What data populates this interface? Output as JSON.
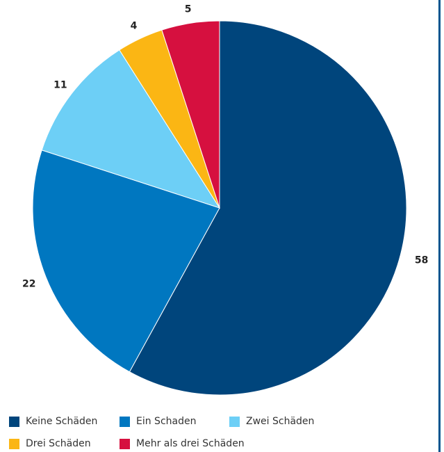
{
  "chart_data": {
    "type": "pie",
    "title": "",
    "start": "top",
    "direction": "clockwise",
    "slices": [
      {
        "label": "Keine Schäden",
        "value": 58,
        "value_label": "58",
        "color": "#00457c"
      },
      {
        "label": "Ein Schaden",
        "value": 22,
        "value_label": "22",
        "color": "#0077c0"
      },
      {
        "label": "Zwei Schäden",
        "value": 11,
        "value_label": "11",
        "color": "#6dcff6"
      },
      {
        "label": "Drei Schäden",
        "value": 4,
        "value_label": "4",
        "color": "#fbb614"
      },
      {
        "label": "Mehr als drei Schäden",
        "value": 5,
        "value_label": "5",
        "color": "#d6103f"
      }
    ],
    "legend_position": "bottom"
  },
  "colors": {
    "frame_line": "#00558f",
    "label_text": "#222222"
  }
}
